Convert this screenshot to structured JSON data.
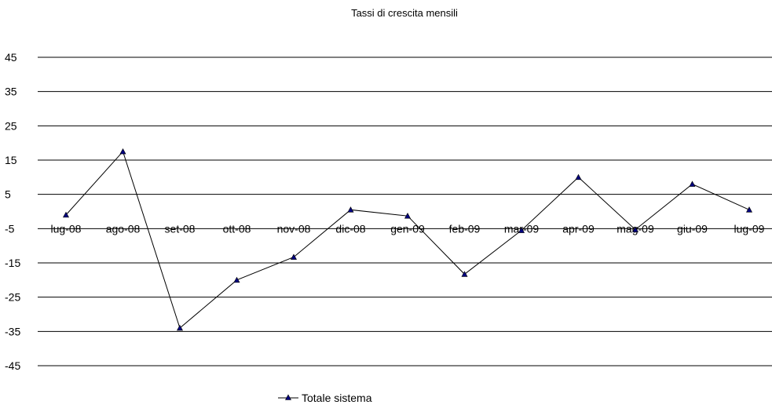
{
  "chart_data": {
    "type": "line",
    "title": "Tassi di crescita mensili",
    "xlabel": "",
    "ylabel": "",
    "categories": [
      "lug-08",
      "ago-08",
      "set-08",
      "ott-08",
      "nov-08",
      "dic-08",
      "gen-09",
      "feb-09",
      "mar-09",
      "apr-09",
      "mag-09",
      "giu-09",
      "lug-09"
    ],
    "series": [
      {
        "name": "Totale sistema",
        "values": [
          -1.0,
          17.5,
          -34.0,
          -20.0,
          -13.3,
          0.5,
          -1.3,
          -18.3,
          -5.5,
          10.0,
          -5.3,
          8.0,
          0.5
        ],
        "color": "#000080",
        "marker": "triangle"
      }
    ],
    "ylim": [
      -45,
      45
    ],
    "y_ticks": [
      45,
      35,
      25,
      15,
      5,
      -5,
      -15,
      -25,
      -35,
      -45
    ],
    "grid": "horizontal",
    "legend_position": "bottom"
  }
}
